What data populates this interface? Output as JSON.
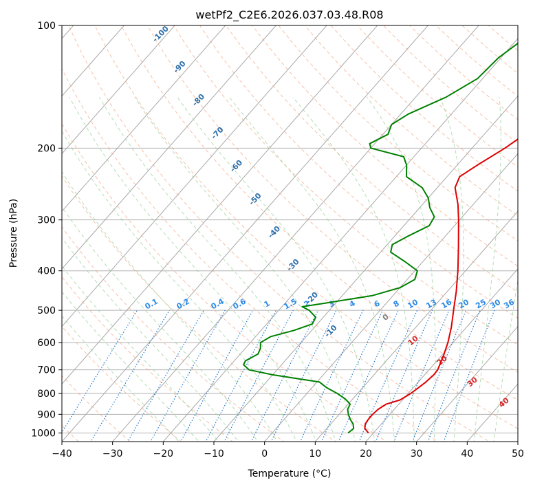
{
  "chart_data": {
    "type": "line",
    "title": "wetPf2_C2E6.2026.037.03.48.R08",
    "xlabel": "Temperature (°C)",
    "ylabel": "Pressure (hPa)",
    "xlim": [
      -40,
      50
    ],
    "ylim": [
      1050,
      100
    ],
    "y_scale": "log",
    "grid": true,
    "x_ticks": [
      -40,
      -30,
      -20,
      -10,
      0,
      10,
      20,
      30,
      40,
      50
    ],
    "y_ticks": [
      100,
      200,
      300,
      400,
      500,
      600,
      700,
      800,
      900,
      1000
    ],
    "series": [
      {
        "color": "#e00000",
        "points": [
          [
            1000,
            19.0
          ],
          [
            975,
            17.5
          ],
          [
            950,
            16.8
          ],
          [
            925,
            16.6
          ],
          [
            900,
            16.6
          ],
          [
            875,
            16.8
          ],
          [
            850,
            17.5
          ],
          [
            830,
            19.5
          ],
          [
            800,
            20.5
          ],
          [
            775,
            21.0
          ],
          [
            750,
            21.5
          ],
          [
            720,
            21.8
          ],
          [
            700,
            21.7
          ],
          [
            650,
            20.5
          ],
          [
            600,
            19.0
          ],
          [
            550,
            17.0
          ],
          [
            500,
            14.5
          ],
          [
            450,
            11.8
          ],
          [
            400,
            8.5
          ],
          [
            350,
            4.5
          ],
          [
            300,
            -0.2
          ],
          [
            275,
            -3.0
          ],
          [
            250,
            -6.5
          ],
          [
            235,
            -7.5
          ],
          [
            220,
            -6.0
          ],
          [
            200,
            -3.5
          ],
          [
            185,
            -2.0
          ],
          [
            170,
            -2.0
          ],
          [
            160,
            -3.0
          ],
          [
            150,
            -4.5
          ],
          [
            140,
            -6.0
          ],
          [
            130,
            -6.5
          ],
          [
            120,
            -6.5
          ],
          [
            110,
            -7.5
          ],
          [
            100,
            -9.5
          ]
        ]
      },
      {
        "color": "#008000",
        "points": [
          [
            1000,
            15.0
          ],
          [
            975,
            15.3
          ],
          [
            950,
            14.4
          ],
          [
            925,
            13.0
          ],
          [
            900,
            11.8
          ],
          [
            875,
            10.8
          ],
          [
            850,
            10.4
          ],
          [
            825,
            8.5
          ],
          [
            800,
            6.0
          ],
          [
            775,
            3.0
          ],
          [
            750,
            0.5
          ],
          [
            720,
            -10.0
          ],
          [
            700,
            -15.5
          ],
          [
            680,
            -17.5
          ],
          [
            665,
            -17.8
          ],
          [
            640,
            -16.5
          ],
          [
            620,
            -17.0
          ],
          [
            600,
            -18.0
          ],
          [
            580,
            -17.0
          ],
          [
            560,
            -13.5
          ],
          [
            540,
            -11.0
          ],
          [
            520,
            -11.5
          ],
          [
            500,
            -14.0
          ],
          [
            490,
            -16.0
          ],
          [
            480,
            -12.0
          ],
          [
            460,
            -4.0
          ],
          [
            440,
            0.0
          ],
          [
            420,
            1.5
          ],
          [
            400,
            0.5
          ],
          [
            380,
            -3.5
          ],
          [
            360,
            -8.0
          ],
          [
            345,
            -9.0
          ],
          [
            330,
            -7.5
          ],
          [
            310,
            -5.0
          ],
          [
            295,
            -5.5
          ],
          [
            280,
            -8.0
          ],
          [
            265,
            -10.0
          ],
          [
            250,
            -13.0
          ],
          [
            235,
            -18.0
          ],
          [
            220,
            -20.0
          ],
          [
            210,
            -22.0
          ],
          [
            200,
            -30.0
          ],
          [
            195,
            -31.0
          ],
          [
            185,
            -29.0
          ],
          [
            175,
            -30.0
          ],
          [
            165,
            -28.5
          ],
          [
            150,
            -24.0
          ],
          [
            135,
            -21.0
          ],
          [
            120,
            -20.5
          ],
          [
            100,
            -17.5
          ]
        ]
      }
    ],
    "dry_adiabat_labels": [
      "-100",
      "-90",
      "-80",
      "-70",
      "-60",
      "-50",
      "-40",
      "-30",
      "-20",
      "-10"
    ],
    "mixing_ratio_labels": [
      "0.1",
      "0.2",
      "0.4",
      "0.6",
      "1",
      "1.5",
      "2",
      "3",
      "4",
      "6",
      "8",
      "10",
      "13",
      "16",
      "20",
      "25",
      "30",
      "36"
    ],
    "moist_adiabat_labels": [
      "0",
      "10",
      "20",
      "30",
      "40"
    ],
    "colors": {
      "temperature": "#e00000",
      "dewpoint": "#008000",
      "isotherm": "#999999",
      "dry_adiabat": "#f4a582",
      "moist_adiabat": "#9bd19b",
      "mixing_ratio": "#1f78d1",
      "dry_label": "#2c6fab",
      "mixing_label": "#2b8ae6",
      "moist_label_zero": "#7f7f7f",
      "moist_label": "#d62728"
    }
  }
}
